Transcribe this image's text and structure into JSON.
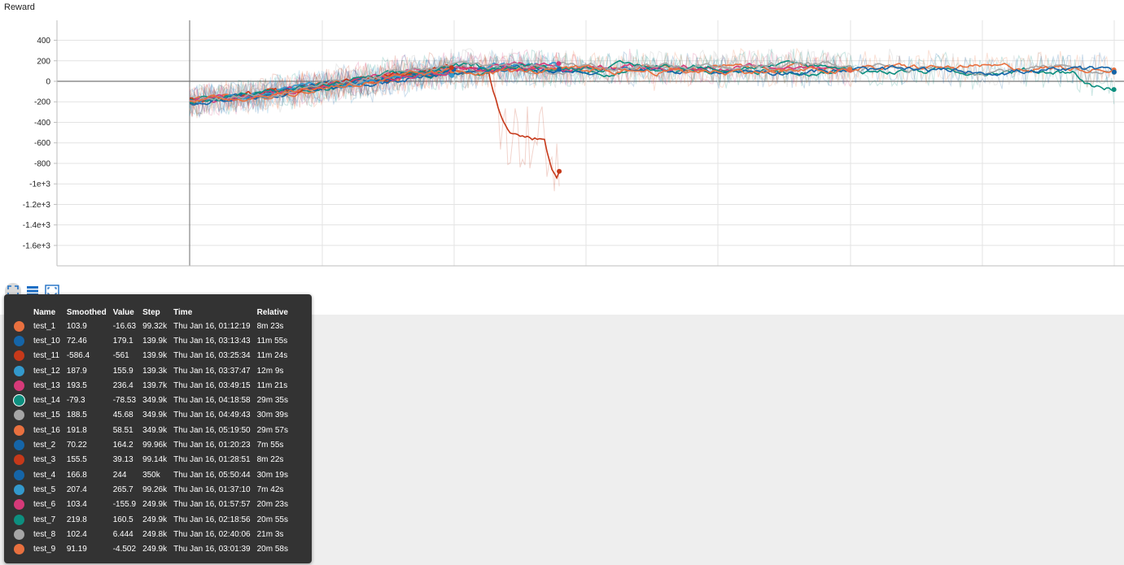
{
  "chart_data": {
    "type": "line",
    "title": "Reward",
    "xlabel": "",
    "ylabel": "",
    "ylim": [
      -1800,
      600
    ],
    "y_ticks": [
      {
        "value": 400,
        "label": "400"
      },
      {
        "value": 200,
        "label": "200"
      },
      {
        "value": 0,
        "label": "0"
      },
      {
        "value": -200,
        "label": "-200"
      },
      {
        "value": -400,
        "label": "-400"
      },
      {
        "value": -600,
        "label": "-600"
      },
      {
        "value": -800,
        "label": "-800"
      },
      {
        "value": -1000,
        "label": "-1e+3"
      },
      {
        "value": -1200,
        "label": "-1.2e+3"
      },
      {
        "value": -1400,
        "label": "-1.4e+3"
      },
      {
        "value": -1600,
        "label": "-1.6e+3"
      }
    ],
    "grid": true,
    "series": [
      {
        "name": "test_1",
        "color": "#e8703f",
        "step": "99.32k"
      },
      {
        "name": "test_10",
        "color": "#1565a8",
        "step": "139.9k"
      },
      {
        "name": "test_11",
        "color": "#c6391a",
        "step": "139.9k"
      },
      {
        "name": "test_12",
        "color": "#3399cc",
        "step": "139.3k"
      },
      {
        "name": "test_13",
        "color": "#d63a79",
        "step": "139.7k"
      },
      {
        "name": "test_14",
        "color": "#0d8f7f",
        "step": "349.9k"
      },
      {
        "name": "test_15",
        "color": "#a6a6a6",
        "step": "349.9k"
      },
      {
        "name": "test_16",
        "color": "#e8703f",
        "step": "349.9k"
      },
      {
        "name": "test_2",
        "color": "#1565a8",
        "step": "99.96k"
      },
      {
        "name": "test_3",
        "color": "#c6391a",
        "step": "99.14k"
      },
      {
        "name": "test_4",
        "color": "#1565a8",
        "step": "350k"
      },
      {
        "name": "test_5",
        "color": "#3399cc",
        "step": "99.26k"
      },
      {
        "name": "test_6",
        "color": "#d63a79",
        "step": "249.9k"
      },
      {
        "name": "test_7",
        "color": "#0d8f7f",
        "step": "249.9k"
      },
      {
        "name": "test_8",
        "color": "#a6a6a6",
        "step": "249.8k"
      },
      {
        "name": "test_9",
        "color": "#e8703f",
        "step": "249.9k"
      }
    ]
  },
  "tooltip": {
    "headers": [
      "Name",
      "Smoothed",
      "Value",
      "Step",
      "Time",
      "Relative"
    ],
    "rows": [
      {
        "color": "#e8703f",
        "name": "test_1",
        "smoothed": "103.9",
        "value": "-16.63",
        "step": "99.32k",
        "time": "Thu Jan 16, 01:12:19",
        "relative": "8m 23s"
      },
      {
        "color": "#1565a8",
        "name": "test_10",
        "smoothed": "72.46",
        "value": "179.1",
        "step": "139.9k",
        "time": "Thu Jan 16, 03:13:43",
        "relative": "11m 55s"
      },
      {
        "color": "#c6391a",
        "name": "test_11",
        "smoothed": "-586.4",
        "value": "-561",
        "step": "139.9k",
        "time": "Thu Jan 16, 03:25:34",
        "relative": "11m 24s"
      },
      {
        "color": "#3399cc",
        "name": "test_12",
        "smoothed": "187.9",
        "value": "155.9",
        "step": "139.3k",
        "time": "Thu Jan 16, 03:37:47",
        "relative": "12m 9s"
      },
      {
        "color": "#d63a79",
        "name": "test_13",
        "smoothed": "193.5",
        "value": "236.4",
        "step": "139.7k",
        "time": "Thu Jan 16, 03:49:15",
        "relative": "11m 21s"
      },
      {
        "color": "#0d8f7f",
        "name": "test_14",
        "smoothed": "-79.3",
        "value": "-78.53",
        "step": "349.9k",
        "time": "Thu Jan 16, 04:18:58",
        "relative": "29m 35s",
        "highlight": true
      },
      {
        "color": "#a6a6a6",
        "name": "test_15",
        "smoothed": "188.5",
        "value": "45.68",
        "step": "349.9k",
        "time": "Thu Jan 16, 04:49:43",
        "relative": "30m 39s"
      },
      {
        "color": "#e8703f",
        "name": "test_16",
        "smoothed": "191.8",
        "value": "58.51",
        "step": "349.9k",
        "time": "Thu Jan 16, 05:19:50",
        "relative": "29m 57s"
      },
      {
        "color": "#1565a8",
        "name": "test_2",
        "smoothed": "70.22",
        "value": "164.2",
        "step": "99.96k",
        "time": "Thu Jan 16, 01:20:23",
        "relative": "7m 55s"
      },
      {
        "color": "#c6391a",
        "name": "test_3",
        "smoothed": "155.5",
        "value": "39.13",
        "step": "99.14k",
        "time": "Thu Jan 16, 01:28:51",
        "relative": "8m 22s"
      },
      {
        "color": "#1565a8",
        "name": "test_4",
        "smoothed": "166.8",
        "value": "244",
        "step": "350k",
        "time": "Thu Jan 16, 05:50:44",
        "relative": "30m 19s"
      },
      {
        "color": "#3399cc",
        "name": "test_5",
        "smoothed": "207.4",
        "value": "265.7",
        "step": "99.26k",
        "time": "Thu Jan 16, 01:37:10",
        "relative": "7m 42s"
      },
      {
        "color": "#d63a79",
        "name": "test_6",
        "smoothed": "103.4",
        "value": "-155.9",
        "step": "249.9k",
        "time": "Thu Jan 16, 01:57:57",
        "relative": "20m 23s"
      },
      {
        "color": "#0d8f7f",
        "name": "test_7",
        "smoothed": "219.8",
        "value": "160.5",
        "step": "249.9k",
        "time": "Thu Jan 16, 02:18:56",
        "relative": "20m 55s"
      },
      {
        "color": "#a6a6a6",
        "name": "test_8",
        "smoothed": "102.4",
        "value": "6.444",
        "step": "249.8k",
        "time": "Thu Jan 16, 02:40:06",
        "relative": "21m 3s"
      },
      {
        "color": "#e8703f",
        "name": "test_9",
        "smoothed": "91.19",
        "value": "-4.502",
        "step": "249.9k",
        "time": "Thu Jan 16, 03:01:39",
        "relative": "20m 58s"
      }
    ]
  },
  "toolbar": {
    "buttons": [
      {
        "icon": "fit-domain-icon",
        "active": true
      },
      {
        "icon": "toggle-log-scale-icon",
        "active": false
      },
      {
        "icon": "expand-chart-icon",
        "active": false
      }
    ]
  }
}
